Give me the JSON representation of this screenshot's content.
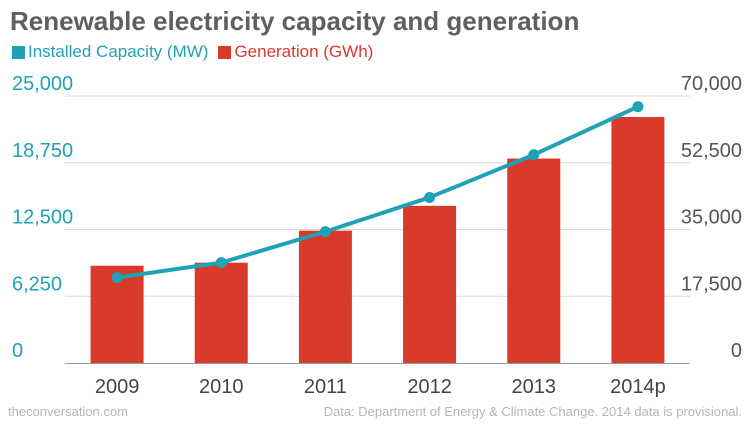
{
  "title": "Renewable electricity capacity and generation",
  "legend": [
    {
      "label": "Installed Capacity (MW)",
      "color": "#1fa2b5"
    },
    {
      "label": "Generation (GWh)",
      "color": "#d93a2b"
    }
  ],
  "source_left": "theconversation.com",
  "source_right": "Data: Department of Energy & Climate Change. 2014 data is provisional.",
  "chart_data": {
    "type": "bar",
    "categories": [
      "2009",
      "2010",
      "2011",
      "2012",
      "2013",
      "2014p"
    ],
    "series": [
      {
        "name": "Generation (GWh)",
        "type": "bar",
        "axis": "right",
        "color": "#d93a2b",
        "values": [
          25500,
          26300,
          34700,
          41200,
          53600,
          64500
        ]
      },
      {
        "name": "Installed Capacity (MW)",
        "type": "line",
        "axis": "left",
        "color": "#1fa2b5",
        "values": [
          8000,
          9400,
          12300,
          15500,
          19500,
          24000
        ]
      }
    ],
    "y_left": {
      "ylim": [
        0,
        25000
      ],
      "ticks": [
        "0",
        "6,250",
        "12,500",
        "18,750",
        "25,000"
      ],
      "color": "#1fa2b5"
    },
    "y_right": {
      "ylim": [
        0,
        70000
      ],
      "ticks": [
        "0",
        "17,500",
        "35,000",
        "52,500",
        "70,000"
      ],
      "color": "#555555"
    },
    "grid": true,
    "legend_position": "top-left"
  }
}
